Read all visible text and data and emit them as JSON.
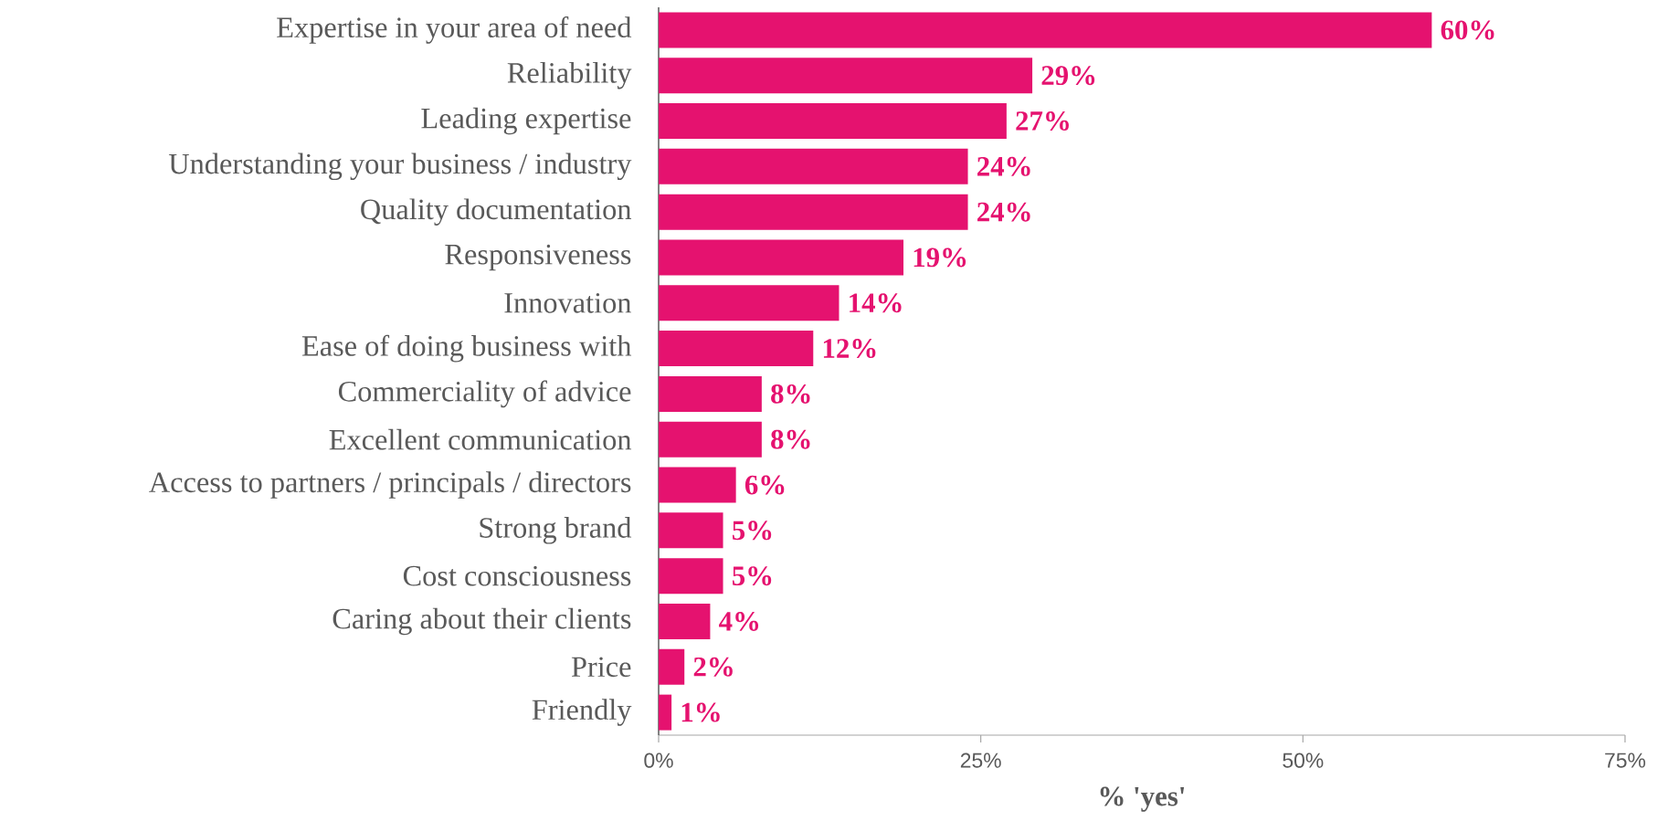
{
  "chart_data": {
    "type": "bar",
    "orientation": "horizontal",
    "xlabel": "% 'yes'",
    "categories": [
      "Expertise in your area of need",
      "Reliability",
      "Leading expertise",
      "Understanding your business / industry",
      "Quality documentation",
      "Responsiveness",
      "Innovation",
      "Ease of doing business with",
      "Commerciality of advice",
      "Excellent communication",
      "Access to partners / principals / directors",
      "Strong brand",
      "Cost consciousness",
      "Caring about their clients",
      "Price",
      "Friendly"
    ],
    "values": [
      60,
      29,
      27,
      24,
      24,
      19,
      14,
      12,
      8,
      8,
      6,
      5,
      5,
      4,
      2,
      1
    ],
    "value_labels": [
      "60%",
      "29%",
      "27%",
      "24%",
      "24%",
      "19%",
      "14%",
      "12%",
      "8%",
      "8%",
      "6%",
      "5%",
      "5%",
      "4%",
      "2%",
      "1%"
    ],
    "color": "#e5126f",
    "xlim": [
      0,
      75
    ],
    "xticks": [
      {
        "value": 0,
        "label": "0%"
      },
      {
        "value": 25,
        "label": "25%"
      },
      {
        "value": 50,
        "label": "50%"
      },
      {
        "value": 75,
        "label": "75%"
      }
    ],
    "grid": false
  }
}
